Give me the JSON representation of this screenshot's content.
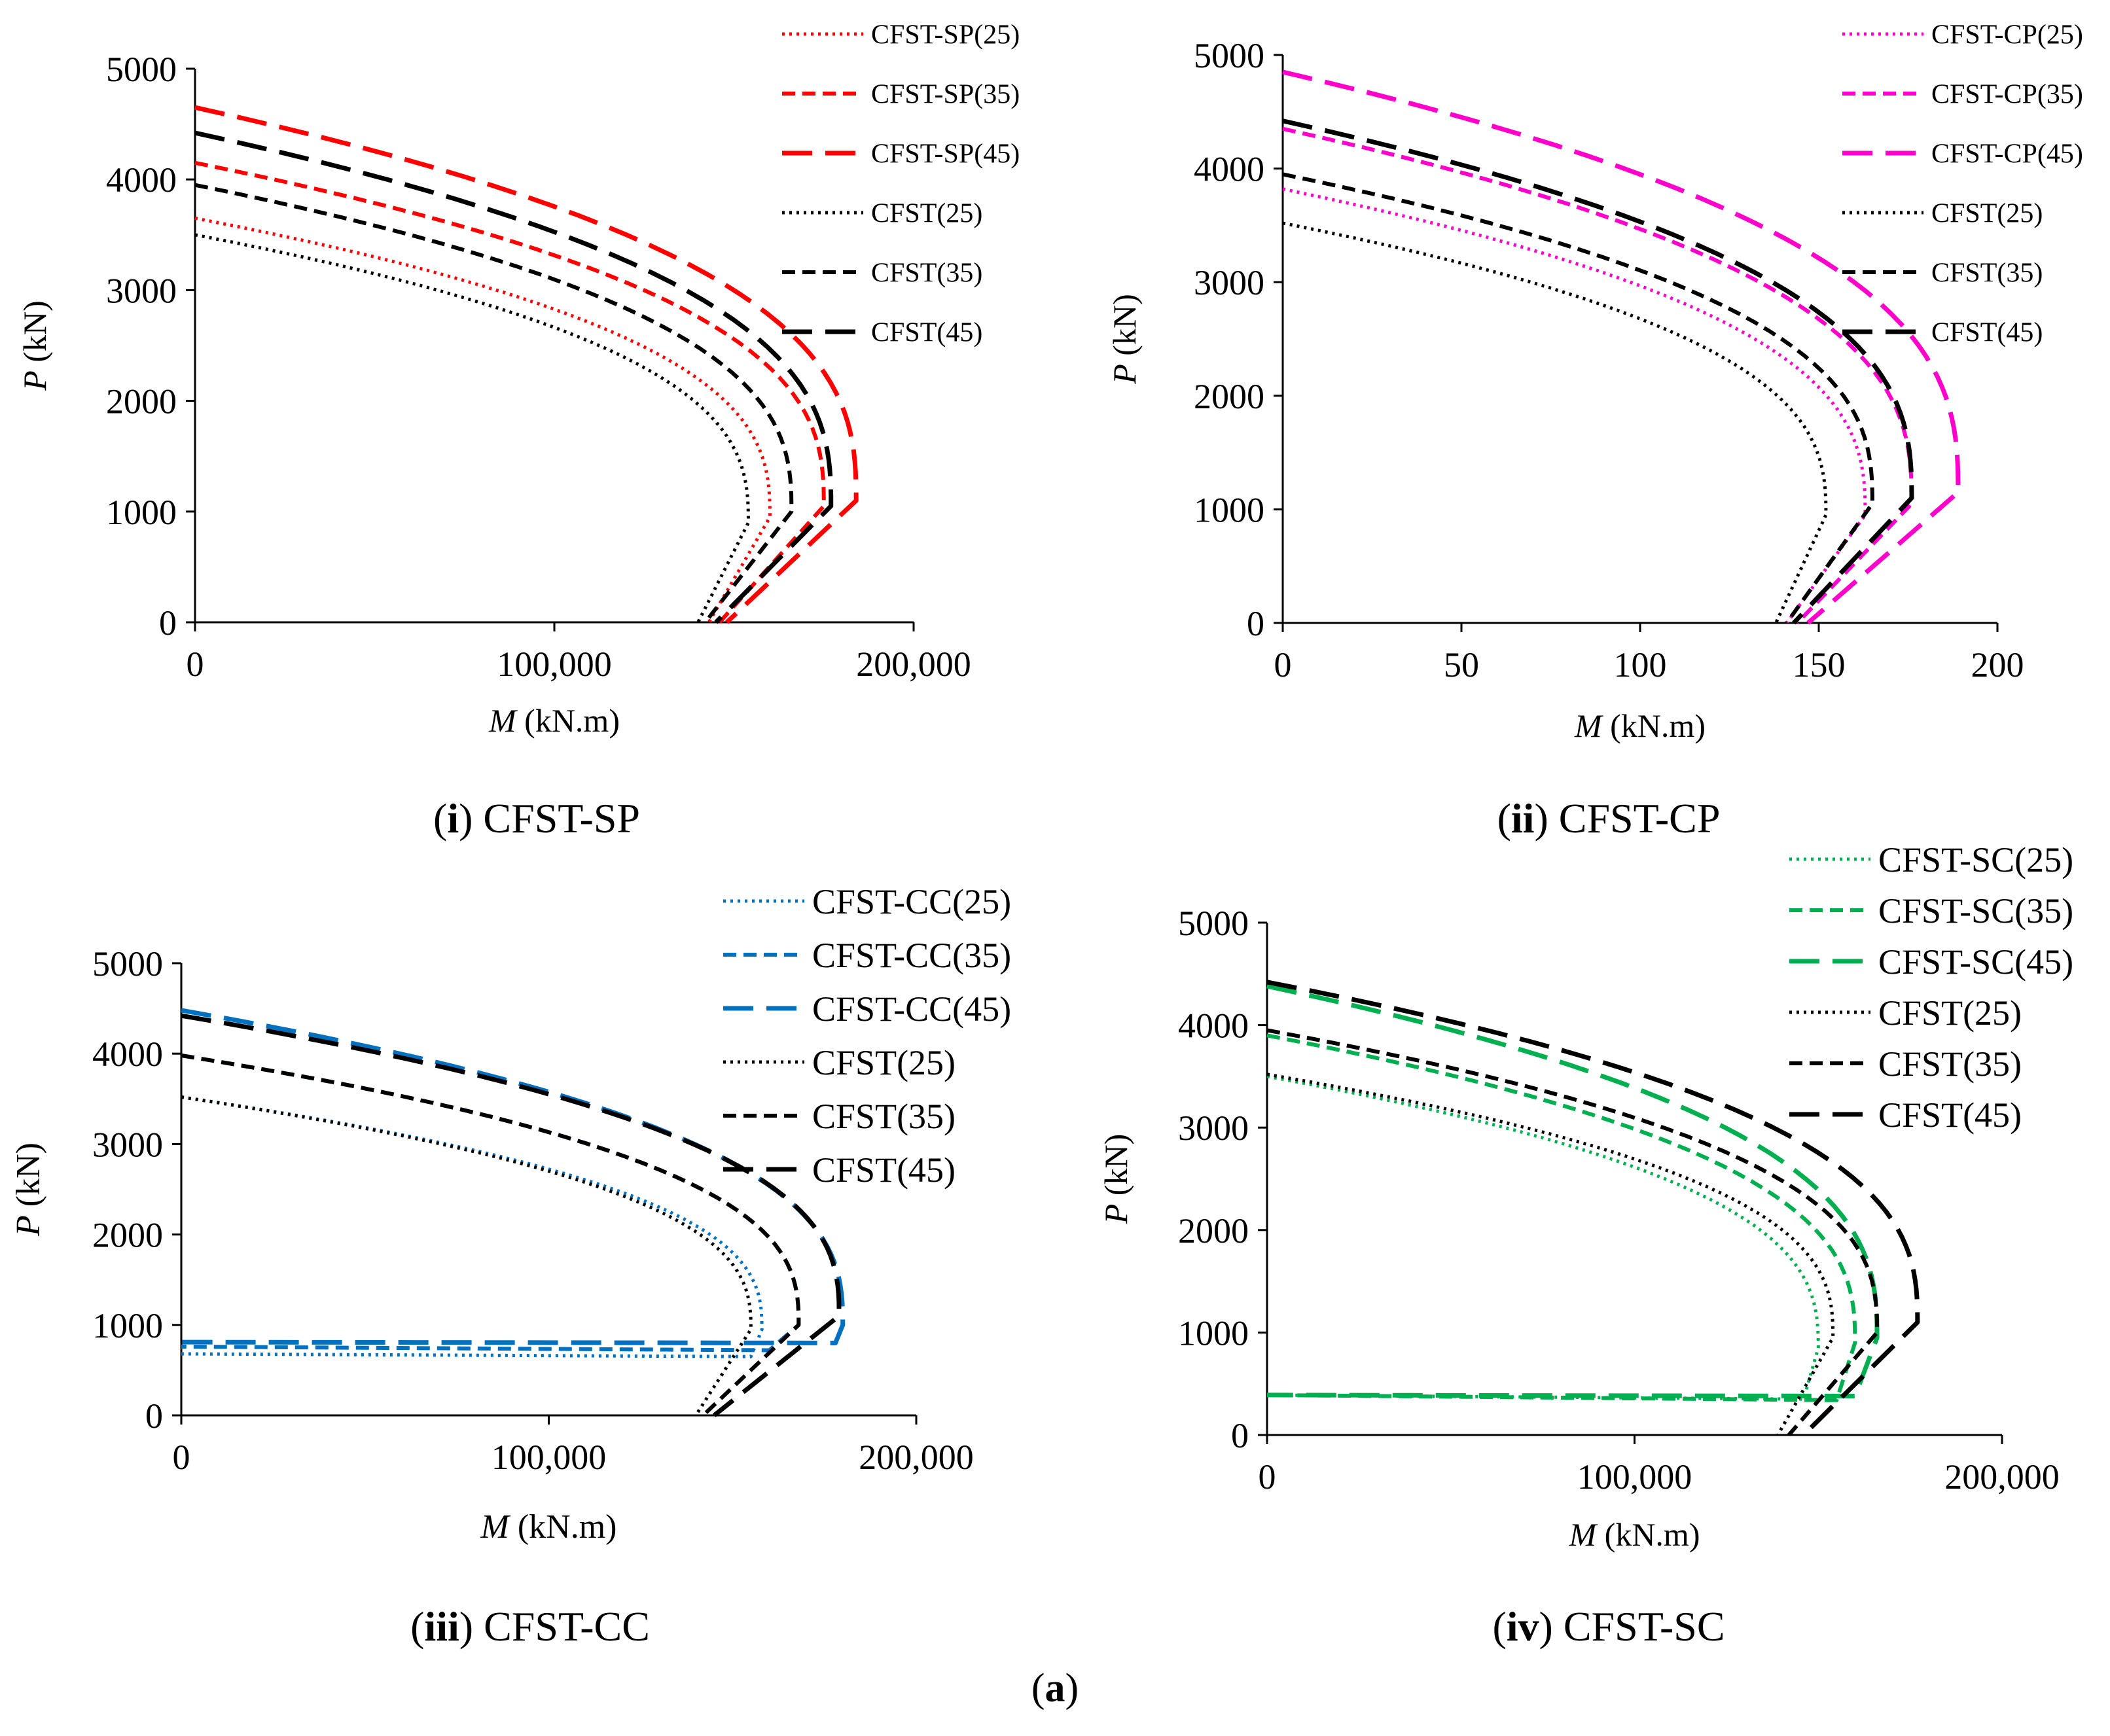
{
  "figure_label": "(a)",
  "chart_data": [
    {
      "type": "line",
      "caption_bold": "i",
      "caption_text": "CFST-SP",
      "xlabel_var": "M",
      "xlabel_unit": "(kN.m)",
      "ylabel_var": "P",
      "ylabel_unit": "(kN)",
      "xlim": [
        0,
        200000
      ],
      "ylim": [
        0,
        5000
      ],
      "xticks": [
        0,
        100000,
        200000
      ],
      "xtick_labels": [
        "0",
        "100,000",
        "200,000"
      ],
      "yticks": [
        0,
        1000,
        2000,
        3000,
        4000,
        5000
      ],
      "ytick_labels": [
        "0",
        "1000",
        "2000",
        "3000",
        "4000",
        "5000"
      ],
      "series": [
        {
          "name": "CFST-SP(25)",
          "color": "#ff0000",
          "dash": "dot",
          "mmax": 160000,
          "p0": 3650,
          "pb": 950,
          "mend": 143000
        },
        {
          "name": "CFST-SP(35)",
          "color": "#ff0000",
          "dash": "short",
          "mmax": 175000,
          "p0": 4150,
          "pb": 1050,
          "mend": 146000
        },
        {
          "name": "CFST-SP(45)",
          "color": "#ff0000",
          "dash": "long",
          "mmax": 184000,
          "p0": 4650,
          "pb": 1100,
          "mend": 148000
        },
        {
          "name": "CFST(25)",
          "color": "#000000",
          "dash": "dot",
          "mmax": 154000,
          "p0": 3500,
          "pb": 900,
          "mend": 140000
        },
        {
          "name": "CFST(35)",
          "color": "#000000",
          "dash": "short",
          "mmax": 166000,
          "p0": 3950,
          "pb": 1000,
          "mend": 142000
        },
        {
          "name": "CFST(45)",
          "color": "#000000",
          "dash": "long",
          "mmax": 177000,
          "p0": 4420,
          "pb": 1050,
          "mend": 145000
        }
      ]
    },
    {
      "type": "line",
      "caption_bold": "ii",
      "caption_text": "CFST-CP",
      "xlabel_var": "M",
      "xlabel_unit": "(kN.m)",
      "ylabel_var": "P",
      "ylabel_unit": "(kN)",
      "xlim": [
        0,
        200
      ],
      "ylim": [
        0,
        5000
      ],
      "xticks": [
        0,
        50,
        100,
        150,
        200
      ],
      "xtick_labels": [
        "0",
        "50",
        "100",
        "150",
        "200"
      ],
      "yticks": [
        0,
        1000,
        2000,
        3000,
        4000,
        5000
      ],
      "ytick_labels": [
        "0",
        "1000",
        "2000",
        "3000",
        "4000",
        "5000"
      ],
      "series": [
        {
          "name": "CFST-CP(25)",
          "color": "#ff00cc",
          "dash": "dot",
          "mmax": 163,
          "p0": 3820,
          "pb": 950,
          "mend": 141
        },
        {
          "name": "CFST-CP(35)",
          "color": "#ff00cc",
          "dash": "short",
          "mmax": 176,
          "p0": 4350,
          "pb": 1050,
          "mend": 144
        },
        {
          "name": "CFST-CP(45)",
          "color": "#ff00cc",
          "dash": "long",
          "mmax": 189,
          "p0": 4850,
          "pb": 1150,
          "mend": 147
        },
        {
          "name": "CFST(25)",
          "color": "#000000",
          "dash": "dot",
          "mmax": 152,
          "p0": 3520,
          "pb": 950,
          "mend": 138
        },
        {
          "name": "CFST(35)",
          "color": "#000000",
          "dash": "short",
          "mmax": 165,
          "p0": 3950,
          "pb": 1050,
          "mend": 141
        },
        {
          "name": "CFST(45)",
          "color": "#000000",
          "dash": "long",
          "mmax": 176,
          "p0": 4420,
          "pb": 1100,
          "mend": 143
        }
      ]
    },
    {
      "type": "line",
      "caption_bold": "iii",
      "caption_text": "CFST-CC",
      "xlabel_var": "M",
      "xlabel_unit": "(kN.m)",
      "ylabel_var": "P",
      "ylabel_unit": "(kN)",
      "xlim": [
        0,
        200000
      ],
      "ylim": [
        0,
        5000
      ],
      "xticks": [
        0,
        100000,
        200000
      ],
      "xtick_labels": [
        "0",
        "100,000",
        "200,000"
      ],
      "yticks": [
        0,
        1000,
        2000,
        3000,
        4000,
        5000
      ],
      "ytick_labels": [
        "0",
        "1000",
        "2000",
        "3000",
        "4000",
        "5000"
      ],
      "series": [
        {
          "name": "CFST-CC(25)",
          "color": "#0070c0",
          "dash": "dot",
          "mmax": 158000,
          "p0": 3520,
          "pb": 950,
          "tail": [
            [
              155000,
              650
            ],
            [
              0,
              680
            ]
          ]
        },
        {
          "name": "CFST-CC(35)",
          "color": "#0070c0",
          "dash": "short",
          "mmax": 168000,
          "p0": 3980,
          "pb": 1000,
          "tail": [
            [
              160000,
              720
            ],
            [
              0,
              760
            ]
          ]
        },
        {
          "name": "CFST-CC(45)",
          "color": "#0070c0",
          "dash": "long",
          "mmax": 180000,
          "p0": 4480,
          "pb": 1000,
          "tail": [
            [
              178000,
              800
            ],
            [
              0,
              810
            ]
          ]
        },
        {
          "name": "CFST(25)",
          "color": "#000000",
          "dash": "dot",
          "mmax": 155000,
          "p0": 3520,
          "pb": 950,
          "mend": 140000
        },
        {
          "name": "CFST(35)",
          "color": "#000000",
          "dash": "short",
          "mmax": 168000,
          "p0": 3980,
          "pb": 1000,
          "mend": 142000
        },
        {
          "name": "CFST(45)",
          "color": "#000000",
          "dash": "long",
          "mmax": 179000,
          "p0": 4420,
          "pb": 1100,
          "mend": 145000
        }
      ]
    },
    {
      "type": "line",
      "caption_bold": "iv",
      "caption_text": "CFST-SC",
      "xlabel_var": "M",
      "xlabel_unit": "(kN.m)",
      "ylabel_var": "P",
      "ylabel_unit": "(kN)",
      "xlim": [
        0,
        200000
      ],
      "ylim": [
        0,
        5000
      ],
      "xticks": [
        0,
        100000,
        200000
      ],
      "xtick_labels": [
        "0",
        "100,000",
        "200,000"
      ],
      "yticks": [
        0,
        1000,
        2000,
        3000,
        4000,
        5000
      ],
      "ytick_labels": [
        "0",
        "1000",
        "2000",
        "3000",
        "4000",
        "5000"
      ],
      "series": [
        {
          "name": "CFST-SC(25)",
          "color": "#00b050",
          "dash": "dot",
          "mmax": 150000,
          "p0": 3500,
          "pb": 850,
          "tail": [
            [
              146000,
              350
            ],
            [
              0,
              390
            ]
          ]
        },
        {
          "name": "CFST-SC(35)",
          "color": "#00b050",
          "dash": "short",
          "mmax": 160000,
          "p0": 3900,
          "pb": 900,
          "tail": [
            [
              155000,
              340
            ],
            [
              0,
              390
            ]
          ]
        },
        {
          "name": "CFST-SC(45)",
          "color": "#00b050",
          "dash": "long",
          "mmax": 166000,
          "p0": 4380,
          "pb": 950,
          "tail": [
            [
              160000,
              380
            ],
            [
              0,
              390
            ]
          ]
        },
        {
          "name": "CFST(25)",
          "color": "#000000",
          "dash": "dot",
          "mmax": 154000,
          "p0": 3520,
          "pb": 950,
          "mend": 139000
        },
        {
          "name": "CFST(35)",
          "color": "#000000",
          "dash": "short",
          "mmax": 166000,
          "p0": 3950,
          "pb": 1000,
          "mend": 142000
        },
        {
          "name": "CFST(45)",
          "color": "#000000",
          "dash": "long",
          "mmax": 177000,
          "p0": 4420,
          "pb": 1100,
          "mend": 146000
        }
      ]
    }
  ]
}
